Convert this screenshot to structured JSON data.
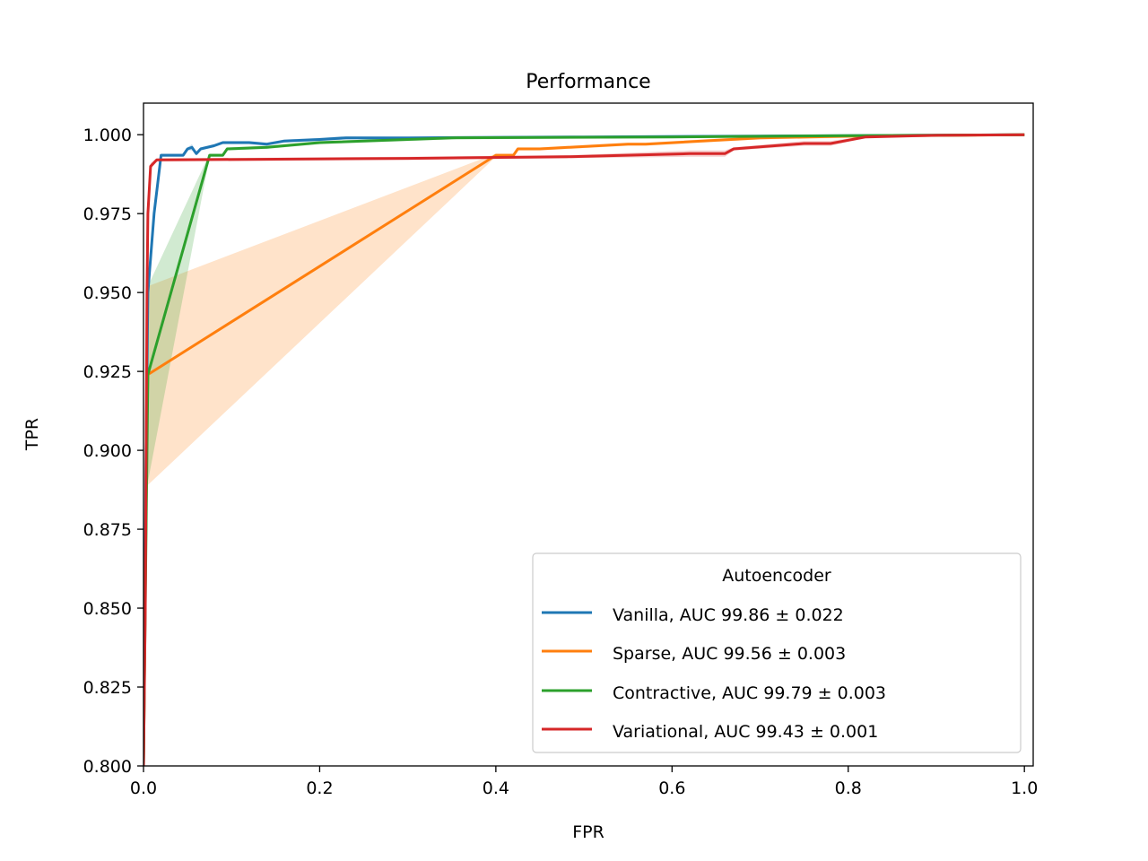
{
  "chart_data": {
    "type": "line",
    "title": "Performance",
    "xlabel": "FPR",
    "ylabel": "TPR",
    "xlim": [
      0.0,
      1.01
    ],
    "ylim": [
      0.8,
      1.01
    ],
    "xticks": [
      0.0,
      0.2,
      0.4,
      0.6,
      0.8,
      1.0
    ],
    "xtick_labels": [
      "0.0",
      "0.2",
      "0.4",
      "0.6",
      "0.8",
      "1.0"
    ],
    "yticks": [
      0.8,
      0.825,
      0.85,
      0.875,
      0.9,
      0.925,
      0.95,
      0.975,
      1.0
    ],
    "ytick_labels": [
      "0.800",
      "0.825",
      "0.850",
      "0.875",
      "0.900",
      "0.925",
      "0.950",
      "0.975",
      "1.000"
    ],
    "grid": false,
    "legend": {
      "title": "Autoencoder",
      "placement": "lower-right"
    },
    "series": [
      {
        "name": "Vanilla, AUC 99.86 ± 0.022",
        "color": "#1f77b4",
        "x": [
          0.0,
          0.003,
          0.005,
          0.012,
          0.02,
          0.03,
          0.045,
          0.05,
          0.055,
          0.06,
          0.065,
          0.08,
          0.09,
          0.12,
          0.14,
          0.16,
          0.2,
          0.23,
          0.3,
          0.5,
          0.8,
          1.0
        ],
        "y": [
          0.8,
          0.9,
          0.95,
          0.975,
          0.9935,
          0.9935,
          0.9935,
          0.9955,
          0.996,
          0.994,
          0.9955,
          0.9965,
          0.9975,
          0.9975,
          0.997,
          0.998,
          0.9985,
          0.999,
          0.999,
          0.9993,
          0.9997,
          1.0
        ],
        "lower": [
          0.8,
          0.89,
          0.945,
          0.973,
          0.993,
          0.993,
          0.993,
          0.995,
          0.995,
          0.9935,
          0.995,
          0.996,
          0.997,
          0.997,
          0.9965,
          0.9975,
          0.998,
          0.9985,
          0.9988,
          0.9991,
          0.9995,
          1.0
        ],
        "upper": [
          0.8,
          0.91,
          0.955,
          0.977,
          0.994,
          0.994,
          0.994,
          0.996,
          0.997,
          0.9945,
          0.996,
          0.997,
          0.998,
          0.998,
          0.9975,
          0.9985,
          0.999,
          0.9995,
          0.9993,
          0.9995,
          0.9999,
          1.0
        ]
      },
      {
        "name": "Sparse, AUC 99.56 ± 0.003",
        "color": "#ff7f0e",
        "x": [
          0.0,
          0.004,
          0.005,
          0.4,
          0.42,
          0.425,
          0.45,
          0.55,
          0.57,
          0.7,
          0.8,
          1.0
        ],
        "y": [
          0.8,
          0.91,
          0.924,
          0.9935,
          0.9935,
          0.9955,
          0.9955,
          0.997,
          0.997,
          0.999,
          0.9995,
          1.0
        ],
        "lower": [
          0.8,
          0.88,
          0.889,
          0.993,
          0.993,
          0.995,
          0.995,
          0.9965,
          0.9965,
          0.9985,
          0.999,
          1.0
        ],
        "upper": [
          0.8,
          0.94,
          0.952,
          0.994,
          0.994,
          0.996,
          0.996,
          0.9975,
          0.9975,
          0.9995,
          0.9998,
          1.0
        ]
      },
      {
        "name": "Contractive, AUC 99.79 ± 0.003",
        "color": "#2ca02c",
        "x": [
          0.0,
          0.004,
          0.005,
          0.075,
          0.09,
          0.095,
          0.14,
          0.2,
          0.35,
          0.6,
          0.8,
          1.0
        ],
        "y": [
          0.8,
          0.9,
          0.924,
          0.9935,
          0.9935,
          0.9955,
          0.996,
          0.9975,
          0.999,
          0.9993,
          0.9997,
          1.0
        ],
        "lower": [
          0.8,
          0.87,
          0.89,
          0.993,
          0.993,
          0.995,
          0.9955,
          0.997,
          0.9985,
          0.999,
          0.9995,
          1.0
        ],
        "upper": [
          0.8,
          0.92,
          0.952,
          0.994,
          0.994,
          0.996,
          0.9965,
          0.998,
          0.9993,
          0.9996,
          0.9999,
          1.0
        ]
      },
      {
        "name": "Variational, AUC 99.43 ± 0.001",
        "color": "#d62728",
        "x": [
          0.0,
          0.002,
          0.004,
          0.005,
          0.008,
          0.015,
          0.3,
          0.48,
          0.62,
          0.66,
          0.67,
          0.75,
          0.78,
          0.82,
          0.9,
          1.0
        ],
        "y": [
          0.8,
          0.85,
          0.95,
          0.975,
          0.99,
          0.992,
          0.9925,
          0.993,
          0.994,
          0.994,
          0.9955,
          0.9972,
          0.9972,
          0.9993,
          0.9998,
          1.0
        ],
        "lower": [
          0.8,
          0.845,
          0.945,
          0.973,
          0.989,
          0.9915,
          0.992,
          0.9925,
          0.993,
          0.993,
          0.995,
          0.9965,
          0.9965,
          0.999,
          0.9996,
          1.0
        ],
        "upper": [
          0.8,
          0.855,
          0.955,
          0.977,
          0.991,
          0.9925,
          0.993,
          0.9935,
          0.995,
          0.995,
          0.996,
          0.998,
          0.998,
          0.9996,
          0.9999,
          1.0
        ]
      }
    ]
  }
}
